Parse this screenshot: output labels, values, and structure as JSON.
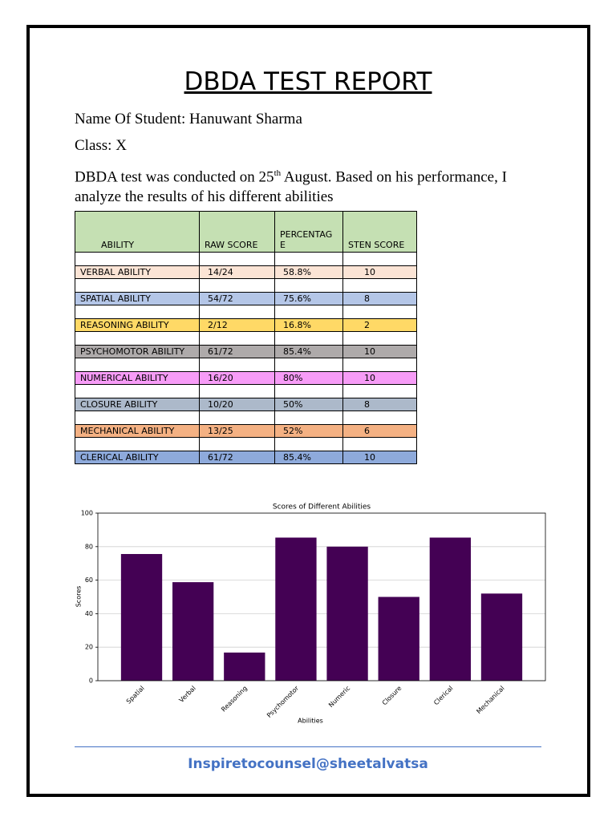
{
  "header": {
    "title": "DBDA TEST REPORT"
  },
  "student": {
    "name_line": "Name Of Student: Hanuwant Sharma",
    "class_line": "Class: X"
  },
  "intro": {
    "text_before": "DBDA test was conducted on 25",
    "superscript": "th",
    "text_after": " August. Based on his performance, I analyze the results of his different abilities"
  },
  "table": {
    "header": [
      "ABILITY",
      "RAW SCORE",
      "PERCENTAGE",
      "STEN SCORE"
    ],
    "header_color": "#c5e0b3",
    "rows": [
      {
        "cells": [
          "VERBAL ABILITY",
          "14/24",
          "58.8%",
          "10"
        ],
        "color": "#fbe4d5"
      },
      {
        "cells": [
          "SPATIAL ABILITY",
          "54/72",
          "75.6%",
          "8"
        ],
        "color": "#b4c6e7"
      },
      {
        "cells": [
          "REASONING ABILITY",
          "2/12",
          "16.8%",
          "2"
        ],
        "color": "#ffd966"
      },
      {
        "cells": [
          "PSYCHOMOTOR ABILITY",
          "61/72",
          "85.4%",
          "10"
        ],
        "color": "#aeaaaa"
      },
      {
        "cells": [
          "NUMERICAL ABILITY",
          "16/20",
          "80%",
          "10"
        ],
        "color": "#f79cf7"
      },
      {
        "cells": [
          "CLOSURE ABILITY",
          "10/20",
          "50%",
          "8"
        ],
        "color": "#acb9ca"
      },
      {
        "cells": [
          "MECHANICAL ABILITY",
          "13/25",
          "52%",
          "6"
        ],
        "color": "#f4b183"
      },
      {
        "cells": [
          "CLERICAL ABILITY",
          "61/72",
          "85.4%",
          "10"
        ],
        "color": "#8eaadb"
      }
    ]
  },
  "chart_data": {
    "type": "bar",
    "title": "Scores of Different Abilities",
    "x_label": "Abilities",
    "y_label": "Scores",
    "categories": [
      "Spatial",
      "Verbal",
      "Reasoning",
      "Psychomotor",
      "Numeric",
      "Closure",
      "Clerical",
      "Mechanical"
    ],
    "values": [
      75.6,
      58.8,
      16.8,
      85.4,
      80,
      50,
      85.4,
      52
    ],
    "color": "#440154",
    "ylim": [
      0,
      100
    ],
    "yticks": [
      0,
      20,
      40,
      60,
      80,
      100
    ],
    "grid": true
  },
  "footer": {
    "text": "Inspiretocounsel@sheetalvatsa"
  }
}
